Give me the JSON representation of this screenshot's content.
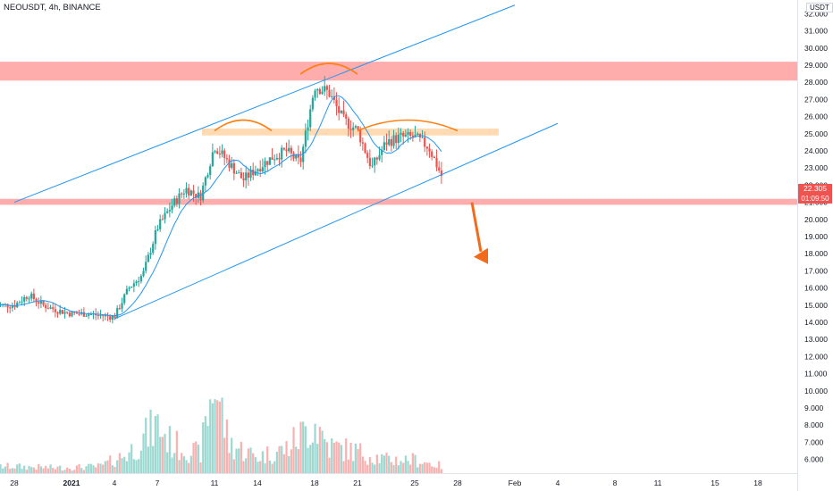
{
  "header": {
    "symbol": "NEOUSDT, 4h, BINANCE",
    "currency": "USDT"
  },
  "last_price": {
    "value": "22.305",
    "countdown": "01:09:50"
  },
  "colors": {
    "up": "#26a69a",
    "down": "#ef5350",
    "ma": "#2196f3",
    "channel": "#2196f3",
    "resistance_band": "#ff9e9e",
    "neckline_band": "#ffd3a6",
    "shoulders": "#ff7f0e",
    "arrow": "#f26b1d"
  },
  "chart_data": {
    "type": "candlestick",
    "title": "NEOUSDT, 4h, BINANCE",
    "y_axis": {
      "unit": "USDT",
      "range": [
        5.2,
        32.8
      ],
      "ticks": [
        "6.000",
        "7.000",
        "8.000",
        "9.000",
        "10.000",
        "11.000",
        "12.000",
        "13.000",
        "14.000",
        "15.000",
        "16.000",
        "17.000",
        "18.000",
        "19.000",
        "20.000",
        "21.000",
        "22.000",
        "23.000",
        "24.000",
        "25.000",
        "26.000",
        "27.000",
        "28.000",
        "29.000",
        "30.000",
        "31.000",
        "32.000"
      ]
    },
    "x_axis": {
      "range": [
        "2020-12-28",
        "2021-02-20"
      ],
      "ticks": [
        {
          "label": "28",
          "date": "2020-12-28"
        },
        {
          "label": "2021",
          "date": "2021-01-01"
        },
        {
          "label": "4",
          "date": "2021-01-04"
        },
        {
          "label": "7",
          "date": "2021-01-07"
        },
        {
          "label": "11",
          "date": "2021-01-11"
        },
        {
          "label": "14",
          "date": "2021-01-14"
        },
        {
          "label": "18",
          "date": "2021-01-18"
        },
        {
          "label": "21",
          "date": "2021-01-21"
        },
        {
          "label": "25",
          "date": "2021-01-25"
        },
        {
          "label": "28",
          "date": "2021-01-28"
        },
        {
          "label": "Feb",
          "date": "2021-02-01"
        },
        {
          "label": "4",
          "date": "2021-02-04"
        },
        {
          "label": "8",
          "date": "2021-02-08"
        },
        {
          "label": "11",
          "date": "2021-02-11"
        },
        {
          "label": "15",
          "date": "2021-02-15"
        },
        {
          "label": "18",
          "date": "2021-02-18"
        }
      ]
    },
    "price_path": [
      [
        "2020-12-28",
        15.0
      ],
      [
        "2020-12-29",
        15.6
      ],
      [
        "2020-12-30",
        15.0
      ],
      [
        "2020-12-31",
        14.7
      ],
      [
        "2021-01-01",
        14.5
      ],
      [
        "2021-01-02",
        14.5
      ],
      [
        "2021-01-03",
        14.4
      ],
      [
        "2021-01-04",
        14.3
      ],
      [
        "2021-01-05",
        16.0
      ],
      [
        "2021-01-06",
        16.8
      ],
      [
        "2021-01-07",
        19.5
      ],
      [
        "2021-01-08",
        20.8
      ],
      [
        "2021-01-09",
        21.8
      ],
      [
        "2021-01-10",
        21.3
      ],
      [
        "2021-01-11",
        24.3
      ],
      [
        "2021-01-12",
        23.3
      ],
      [
        "2021-01-13",
        22.3
      ],
      [
        "2021-01-14",
        23.0
      ],
      [
        "2021-01-15",
        23.6
      ],
      [
        "2021-01-16",
        24.0
      ],
      [
        "2021-01-17",
        23.3
      ],
      [
        "2021-01-18",
        27.8
      ],
      [
        "2021-01-19",
        27.4
      ],
      [
        "2021-01-20",
        25.8
      ],
      [
        "2021-01-21",
        25.2
      ],
      [
        "2021-01-22",
        23.0
      ],
      [
        "2021-01-23",
        24.5
      ],
      [
        "2021-01-24",
        24.8
      ],
      [
        "2021-01-25",
        24.8
      ],
      [
        "2021-01-26",
        24.2
      ],
      [
        "2021-01-27",
        22.3
      ]
    ],
    "volume": {
      "range": [
        0,
        7.2
      ],
      "path": [
        [
          "2020-12-28",
          0.5
        ],
        [
          "2020-12-31",
          0.4
        ],
        [
          "2021-01-03",
          0.5
        ],
        [
          "2021-01-05",
          1.5
        ],
        [
          "2021-01-07",
          3.6
        ],
        [
          "2021-01-08",
          2.2
        ],
        [
          "2021-01-10",
          1.4
        ],
        [
          "2021-01-11",
          7.0
        ],
        [
          "2021-01-12",
          2.2
        ],
        [
          "2021-01-14",
          1.2
        ],
        [
          "2021-01-16",
          1.8
        ],
        [
          "2021-01-18",
          3.8
        ],
        [
          "2021-01-19",
          2.0
        ],
        [
          "2021-01-21",
          1.6
        ],
        [
          "2021-01-23",
          1.0
        ],
        [
          "2021-01-25",
          1.0
        ],
        [
          "2021-01-27",
          0.5
        ]
      ]
    },
    "annotations": {
      "resistance_band": [
        28.1,
        29.2
      ],
      "neckline_band": [
        24.9,
        25.3
      ],
      "support_band": [
        20.85,
        21.2
      ],
      "channel_upper": [
        [
          "2020-12-28",
          21.0
        ],
        [
          "2021-02-01",
          32.5
        ]
      ],
      "channel_lower": [
        [
          "2021-01-04",
          14.2
        ],
        [
          "2021-02-04",
          25.6
        ]
      ],
      "shoulders": [
        {
          "from": "2021-01-11",
          "to": "2021-01-15",
          "apex": 25.9
        },
        {
          "from": "2021-01-17",
          "to": "2021-01-21",
          "apex": 29.2
        },
        {
          "from": "2021-01-21",
          "to": "2021-01-28",
          "apex": 25.9
        }
      ],
      "arrow": {
        "from": [
          "2021-01-29",
          21.0
        ],
        "to": [
          "2021-01-30",
          17.5
        ]
      }
    }
  }
}
